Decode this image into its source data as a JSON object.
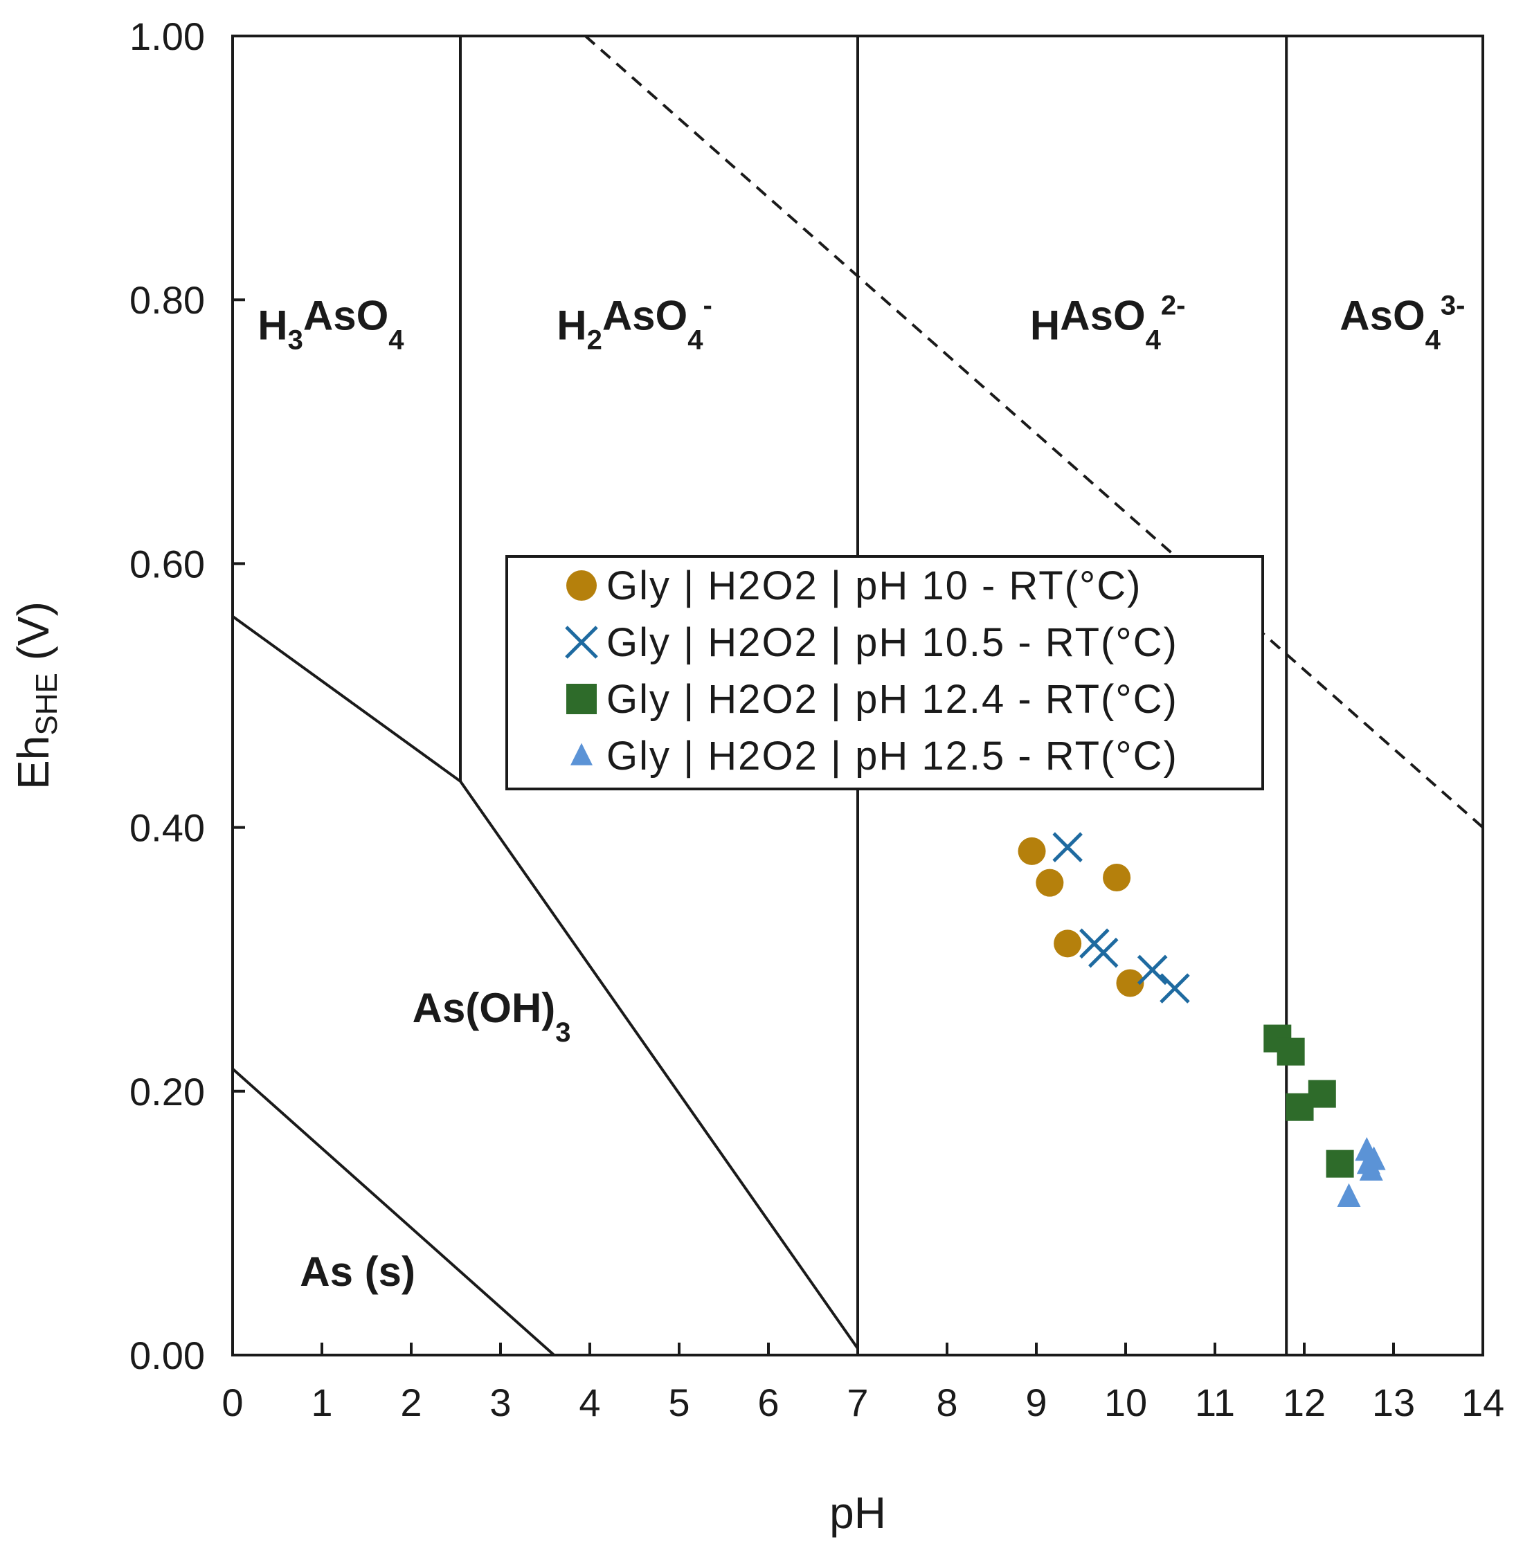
{
  "chart_data": {
    "type": "scatter",
    "title": "",
    "xlabel": "pH",
    "ylabel_main": "Eh",
    "ylabel_sub": "SHE",
    "ylabel_unit": " (V)",
    "xlim": [
      0,
      14
    ],
    "ylim": [
      0,
      1.0
    ],
    "x_ticks": [
      "0",
      "1",
      "2",
      "3",
      "4",
      "5",
      "6",
      "7",
      "8",
      "9",
      "10",
      "11",
      "12",
      "13",
      "14"
    ],
    "y_ticks": [
      "0.00",
      "0.20",
      "0.40",
      "0.60",
      "0.80",
      "1.00"
    ],
    "grid": false,
    "legend_position": "center",
    "regions": [
      {
        "id": "h3aso4",
        "pre": "H",
        "sub1": "3",
        "mid": "AsO",
        "sub2": "4",
        "sup": "",
        "x": 1.1,
        "y": 0.77
      },
      {
        "id": "h2aso4",
        "pre": "H",
        "sub1": "2",
        "mid": "AsO",
        "sub2": "4",
        "sup": "-",
        "x": 4.5,
        "y": 0.77
      },
      {
        "id": "haso4",
        "pre": "H",
        "sub1": "",
        "mid": "AsO",
        "sub2": "4",
        "sup": "2-",
        "x": 9.8,
        "y": 0.77
      },
      {
        "id": "aso4",
        "pre": "",
        "sub1": "",
        "mid": "AsO",
        "sub2": "4",
        "sup": "3-",
        "x": 13.1,
        "y": 0.77
      },
      {
        "id": "asoh3",
        "pre": "",
        "sub1": "",
        "mid": "As(OH)",
        "sub2": "3",
        "sup": "",
        "x": 2.9,
        "y": 0.245
      },
      {
        "id": "as_s",
        "pre": "",
        "sub1": "",
        "mid": "As (s)",
        "sub2": "",
        "sup": "",
        "x": 1.4,
        "y": 0.045
      }
    ],
    "boundaries": [
      {
        "style": "solid",
        "points": [
          [
            2.55,
            1.0
          ],
          [
            2.55,
            0.435
          ]
        ]
      },
      {
        "style": "solid",
        "points": [
          [
            0,
            0.56
          ],
          [
            2.55,
            0.435
          ],
          [
            7.0,
            0.005
          ]
        ]
      },
      {
        "style": "solid",
        "points": [
          [
            7.0,
            1.0
          ],
          [
            7.0,
            0.0
          ]
        ]
      },
      {
        "style": "solid",
        "points": [
          [
            11.8,
            1.0
          ],
          [
            11.8,
            0.0
          ]
        ]
      },
      {
        "style": "solid",
        "points": [
          [
            0,
            0.217
          ],
          [
            3.6,
            0.0
          ]
        ]
      },
      {
        "style": "dashed",
        "points": [
          [
            3.95,
            1.0
          ],
          [
            14,
            0.4
          ]
        ]
      }
    ],
    "series": [
      {
        "name": "Gly | H2O2 | pH 10 - RT(°C)",
        "marker": "circle",
        "color": "#b5800c",
        "points": [
          [
            8.95,
            0.382
          ],
          [
            9.15,
            0.358
          ],
          [
            9.35,
            0.312
          ],
          [
            9.9,
            0.362
          ],
          [
            10.05,
            0.282
          ]
        ]
      },
      {
        "name": "Gly | H2O2 | pH 10.5 - RT(°C)",
        "marker": "x",
        "color": "#1e6aa0",
        "points": [
          [
            9.35,
            0.385
          ],
          [
            9.65,
            0.312
          ],
          [
            9.75,
            0.305
          ],
          [
            10.3,
            0.292
          ],
          [
            10.55,
            0.278
          ]
        ]
      },
      {
        "name": "Gly | H2O2 | pH 12.4 - RT(°C)",
        "marker": "square",
        "color": "#2e6b2a",
        "points": [
          [
            11.7,
            0.24
          ],
          [
            11.85,
            0.23
          ],
          [
            11.95,
            0.188
          ],
          [
            12.2,
            0.198
          ],
          [
            12.4,
            0.145
          ]
        ]
      },
      {
        "name": "Gly | H2O2 | pH 12.5 - RT(°C)",
        "marker": "triangle",
        "color": "#5b93d6",
        "points": [
          [
            12.5,
            0.12
          ],
          [
            12.7,
            0.155
          ],
          [
            12.72,
            0.145
          ],
          [
            12.75,
            0.14
          ],
          [
            12.78,
            0.148
          ]
        ]
      }
    ]
  }
}
